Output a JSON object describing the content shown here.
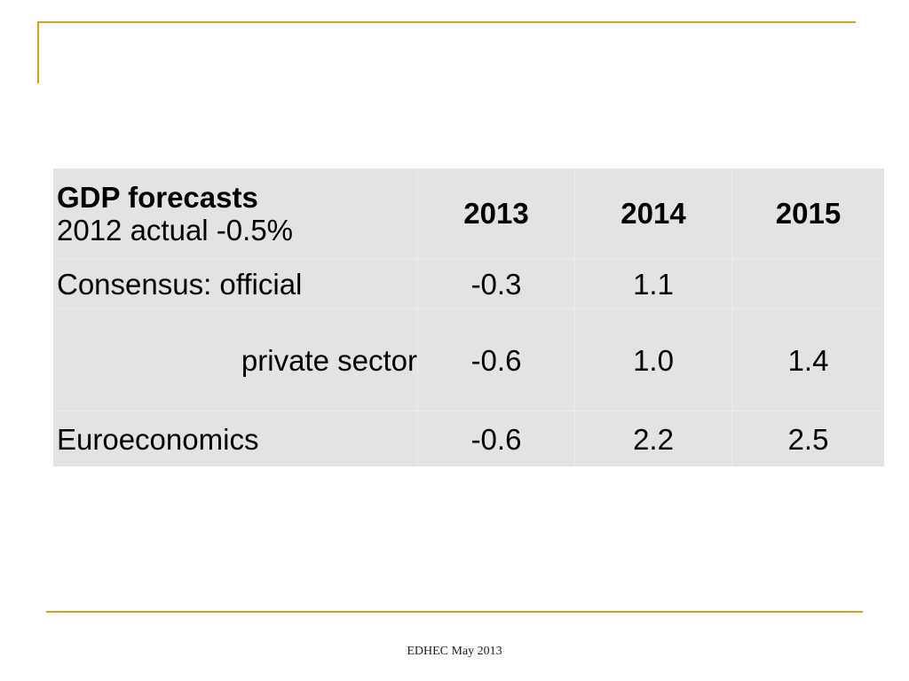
{
  "table": {
    "header": {
      "title": "GDP forecasts",
      "subtitle": "2012 actual -0.5%",
      "years": [
        "2013",
        "2014",
        "2015"
      ]
    },
    "rows": [
      {
        "label": "Consensus: official",
        "values": [
          "-0.3",
          "1.1",
          ""
        ]
      },
      {
        "label": "private sector",
        "values": [
          "-0.6",
          "1.0",
          "1.4"
        ]
      },
      {
        "label": "Euroeconomics",
        "values": [
          "-0.6",
          "2.2",
          "2.5"
        ]
      }
    ]
  },
  "footer": {
    "text": "EDHEC May 2013"
  },
  "colors": {
    "accent_line": "#d4a020",
    "table_background": "#e3e3e3"
  }
}
